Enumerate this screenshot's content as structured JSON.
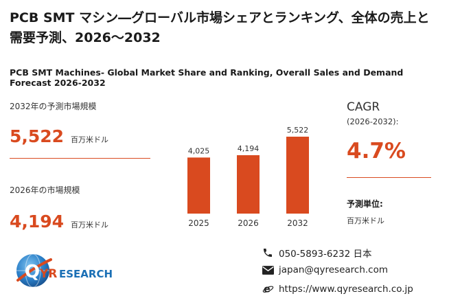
{
  "header": {
    "title": "PCB SMT マシン―グローバル市場シェアとランキング、全体の売上と需要予測、2026～2032",
    "subtitle": "PCB SMT Machines- Global Market Share and Ranking, Overall Sales and Demand Forecast 2026-2032"
  },
  "left": {
    "market2032_label": "2032年の予測市場規模",
    "market2032_value": "5,522",
    "market2032_unit": "百万米ドル",
    "market2026_label": "2026年の市場規模",
    "market2026_value": "4,194",
    "market2026_unit": "百万米ドル"
  },
  "right": {
    "cagr_label": "CAGR",
    "cagr_period": "(2026-2032):",
    "cagr_value": "4.7%",
    "forecast_unit_label": "予測単位:",
    "forecast_unit_value": "百万米ドル"
  },
  "chart_data": {
    "type": "bar",
    "categories": [
      "2025",
      "2026",
      "2032"
    ],
    "values": [
      4025,
      4194,
      5522
    ],
    "value_labels": [
      "4,025",
      "4,194",
      "5,522"
    ],
    "bar_color": "#d94a1f"
  },
  "footer": {
    "logo_q": "Q",
    "logo_yr": "YR",
    "logo_rest": "ESEARCH",
    "phone": "050-5893-6232 日本",
    "email": "japan@qyresearch.com",
    "website": "https://www.qyresearch.co.jp"
  },
  "icons": {
    "phone": "phone-icon",
    "email": "email-icon",
    "web": "web-icon"
  }
}
